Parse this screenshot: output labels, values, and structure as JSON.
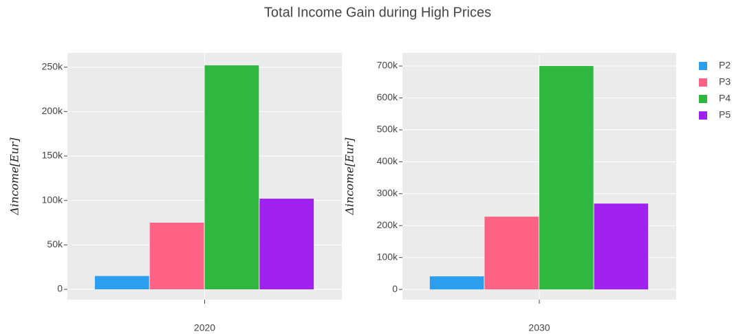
{
  "title": "Total Income Gain during High Prices",
  "chart_data": [
    {
      "type": "bar",
      "ylabel": "Δincome[Eur]",
      "categories": [
        "2020"
      ],
      "series": [
        {
          "name": "P2",
          "color": "#2b9ef0",
          "values": [
            15000
          ]
        },
        {
          "name": "P3",
          "color": "#fe6386",
          "values": [
            75000
          ]
        },
        {
          "name": "P4",
          "color": "#30b73f",
          "values": [
            252000
          ]
        },
        {
          "name": "P5",
          "color": "#a020f0",
          "values": [
            102000
          ]
        }
      ],
      "ylim": [
        -11600,
        266000
      ],
      "yticks": [
        0,
        {
          "value": 50000,
          "label": "50k"
        },
        {
          "value": 100000,
          "label": "100k"
        },
        {
          "value": 150000,
          "label": "150k"
        },
        {
          "value": 200000,
          "label": "200k"
        },
        {
          "value": 250000,
          "label": "250k"
        }
      ],
      "grid": true
    },
    {
      "type": "bar",
      "ylabel": "Δincome[Eur]",
      "categories": [
        "2030"
      ],
      "series": [
        {
          "name": "P2",
          "color": "#2b9ef0",
          "values": [
            41000
          ]
        },
        {
          "name": "P3",
          "color": "#fe6386",
          "values": [
            228000
          ]
        },
        {
          "name": "P4",
          "color": "#30b73f",
          "values": [
            700000
          ]
        },
        {
          "name": "P5",
          "color": "#a020f0",
          "values": [
            269000
          ]
        }
      ],
      "ylim": [
        -32000,
        741000
      ],
      "yticks": [
        0,
        {
          "value": 100000,
          "label": "100k"
        },
        {
          "value": 200000,
          "label": "200k"
        },
        {
          "value": 300000,
          "label": "300k"
        },
        {
          "value": 400000,
          "label": "400k"
        },
        {
          "value": 500000,
          "label": "500k"
        },
        {
          "value": 600000,
          "label": "600k"
        },
        {
          "value": 700000,
          "label": "700k"
        }
      ],
      "grid": true
    }
  ]
}
